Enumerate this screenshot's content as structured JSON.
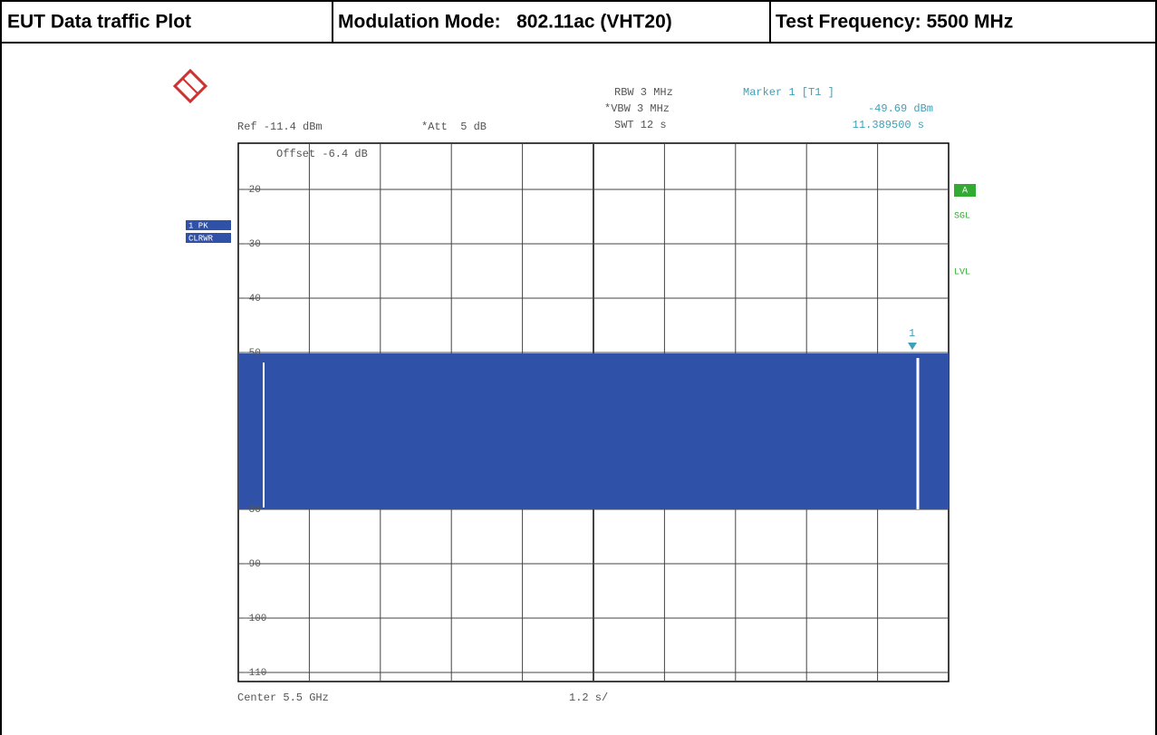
{
  "header": {
    "cells": [
      "EUT Data traffic Plot",
      "Modulation Mode:   802.11ac (VHT20)",
      "Test Frequency: 5500 MHz"
    ]
  },
  "plot": {
    "settings": {
      "ref": "Ref -11.4 dBm",
      "att": "*Att  5 dB",
      "rbw": "RBW 3 MHz",
      "vbw": "*VBW 3 MHz",
      "swt": "SWT 12 s",
      "offset": "Offset -6.4 dB"
    },
    "marker": {
      "title": "Marker 1 [T1 ]",
      "level": "-49.69 dBm",
      "time": "11.389500 s",
      "label": "1"
    },
    "side_left": [
      "1 PK",
      "CLRWR"
    ],
    "side_right": [
      "A",
      "SGL",
      "LVL"
    ],
    "y_labels": [
      "-20",
      "-30",
      "-40",
      "-50",
      "-80",
      "-90",
      "-100",
      "-110"
    ],
    "footer": {
      "center": "Center 5.5 GHz",
      "span": "1.2 s/"
    }
  }
}
